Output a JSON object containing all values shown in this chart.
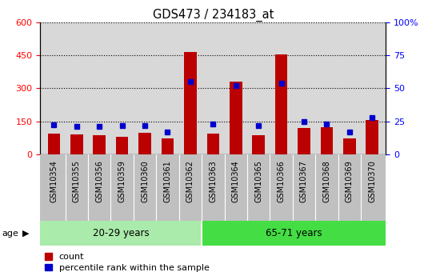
{
  "title": "GDS473 / 234183_at",
  "samples": [
    "GSM10354",
    "GSM10355",
    "GSM10356",
    "GSM10359",
    "GSM10360",
    "GSM10361",
    "GSM10362",
    "GSM10363",
    "GSM10364",
    "GSM10365",
    "GSM10366",
    "GSM10367",
    "GSM10368",
    "GSM10369",
    "GSM10370"
  ],
  "counts": [
    95,
    90,
    88,
    80,
    100,
    75,
    465,
    95,
    330,
    88,
    455,
    120,
    125,
    75,
    155
  ],
  "percentile_ranks": [
    22.5,
    21,
    21,
    22,
    22,
    17,
    55,
    23,
    52,
    22,
    54,
    25,
    23,
    17,
    28
  ],
  "group1_label": "20-29 years",
  "group2_label": "65-71 years",
  "group1_count": 7,
  "group2_count": 8,
  "ylim_left": [
    0,
    600
  ],
  "ylim_right": [
    0,
    100
  ],
  "yticks_left": [
    0,
    150,
    300,
    450,
    600
  ],
  "yticks_right": [
    0,
    25,
    50,
    75,
    100
  ],
  "bar_color": "#bb0000",
  "marker_color": "#0000cc",
  "bg_color_plot": "#d8d8d8",
  "bg_color_label": "#c0c0c0",
  "bg_color_group1": "#aaeaaa",
  "bg_color_group2": "#44dd44",
  "legend_count_label": "count",
  "legend_pct_label": "percentile rank within the sample"
}
